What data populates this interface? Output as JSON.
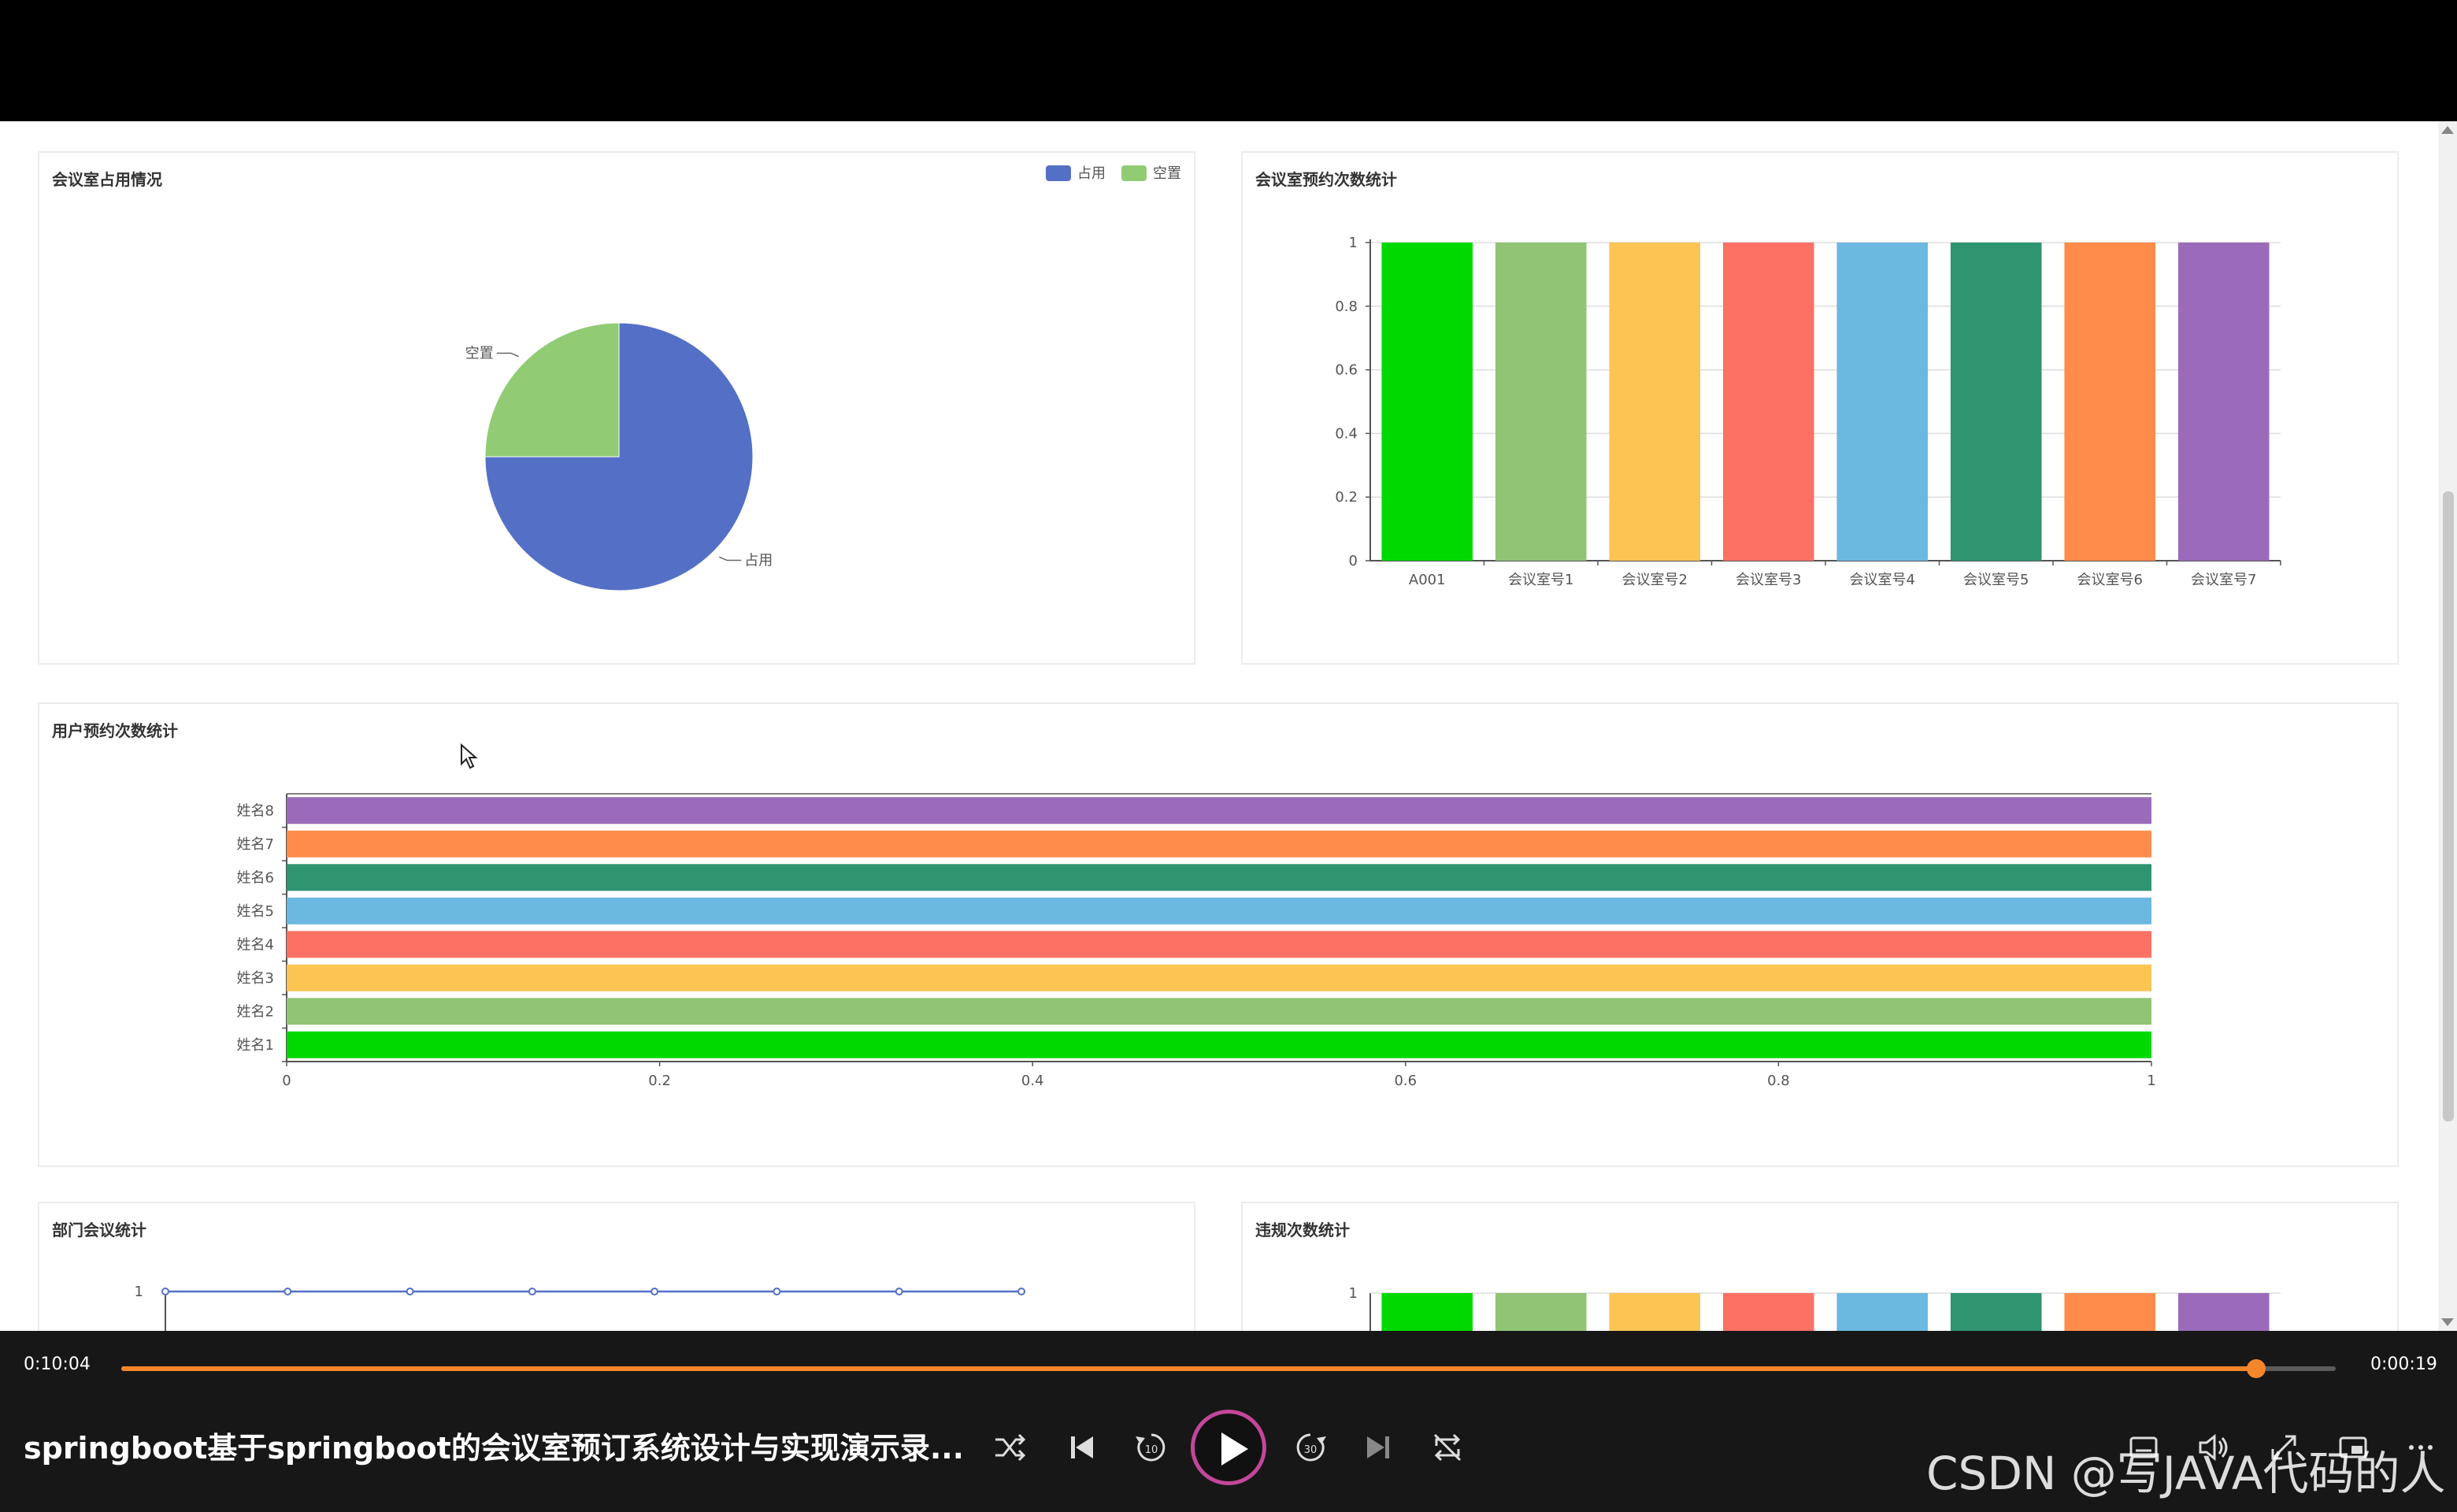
{
  "cards": {
    "occupancy": {
      "title": "会议室占用情况",
      "legend": [
        "占用",
        "空置"
      ]
    },
    "room_bookings": {
      "title": "会议室预约次数统计"
    },
    "user_bookings": {
      "title": "用户预约次数统计"
    },
    "dept_meetings": {
      "title": "部门会议统计"
    },
    "violations": {
      "title": "违规次数统计"
    }
  },
  "chart_data": [
    {
      "type": "pie",
      "title": "会议室占用情况",
      "legend_position": "top-right",
      "labels": [
        "占用",
        "空置"
      ],
      "values": [
        0.75,
        0.25
      ],
      "colors": [
        "#5470c6",
        "#91cc75"
      ]
    },
    {
      "type": "bar",
      "title": "会议室预约次数统计",
      "categories": [
        "A001",
        "会议室号1",
        "会议室号2",
        "会议室号3",
        "会议室号4",
        "会议室号5",
        "会议室号6",
        "会议室号7"
      ],
      "values": [
        1,
        1,
        1,
        1,
        1,
        1,
        1,
        1
      ],
      "ylim": [
        0,
        1
      ],
      "yticks": [
        "0",
        "0.2",
        "0.4",
        "0.6",
        "0.8",
        "1"
      ],
      "grid": true,
      "colors": [
        "#00d900",
        "#91c475",
        "#fcc452",
        "#fd7165",
        "#6bb8e0",
        "#2f9571",
        "#ff8c4b",
        "#9b6bb9"
      ]
    },
    {
      "type": "bar",
      "orientation": "horizontal",
      "title": "用户预约次数统计",
      "categories": [
        "姓名1",
        "姓名2",
        "姓名3",
        "姓名4",
        "姓名5",
        "姓名6",
        "姓名7",
        "姓名8"
      ],
      "values": [
        1,
        1,
        1,
        1,
        1,
        1,
        1,
        1
      ],
      "xlim": [
        0,
        1
      ],
      "xticks": [
        "0",
        "0.2",
        "0.4",
        "0.6",
        "0.8",
        "1"
      ],
      "colors": [
        "#00d900",
        "#91c475",
        "#fcc452",
        "#fd7165",
        "#6bb8e0",
        "#2f9571",
        "#ff8c4b",
        "#9b6bb9"
      ]
    },
    {
      "type": "line",
      "title": "部门会议统计",
      "values": [
        1,
        1,
        1,
        1,
        1,
        1,
        1,
        1
      ],
      "yticks": [
        "1"
      ],
      "color": "#5470c6"
    },
    {
      "type": "bar",
      "title": "违规次数统计",
      "values": [
        1,
        1,
        1,
        1,
        1,
        1,
        1,
        1
      ],
      "yticks": [
        "1"
      ],
      "colors": [
        "#00d900",
        "#91c475",
        "#fcc452",
        "#fd7165",
        "#6bb8e0",
        "#2f9571",
        "#ff8c4b",
        "#9b6bb9"
      ]
    }
  ],
  "player": {
    "time_current": "0:10:04",
    "time_total": "0:00:19",
    "progress": 0.964,
    "title": "springboot基于springboot的会议室预订系统设计与实现演示录...",
    "watermark": "CSDN @写JAVA代码的人",
    "controls": [
      "shuffle-icon",
      "previous-icon",
      "rewind-10-icon",
      "play-icon",
      "forward-30-icon",
      "next-icon",
      "repeat-off-icon",
      "subtitles-icon",
      "volume-icon",
      "expand-icon",
      "pip-icon",
      "more-icon"
    ]
  }
}
